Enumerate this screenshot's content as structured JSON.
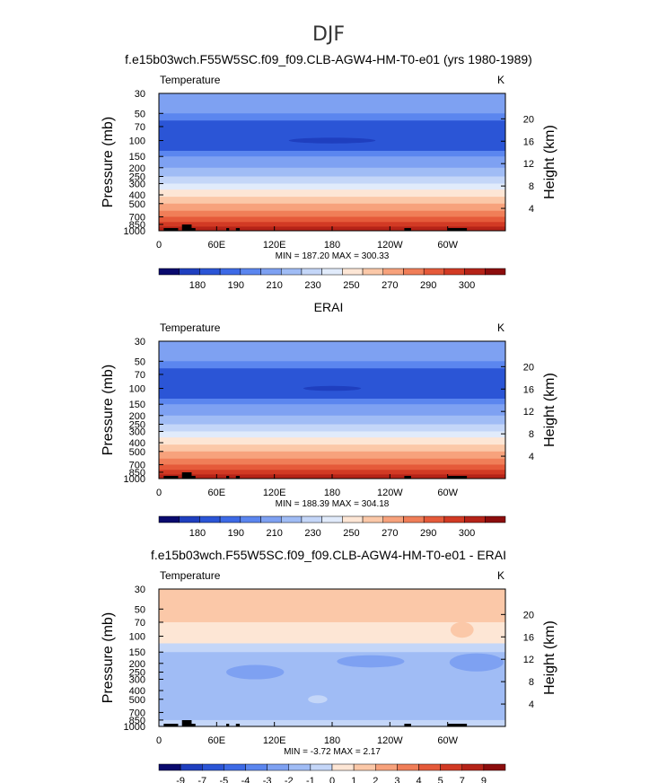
{
  "figure": {
    "title": "DJF"
  },
  "chart_data": [
    {
      "type": "heatmap",
      "name": "model",
      "title": "f.e15b03wch.F55W5SC.f09_f09.CLB-AGW4-HM-T0-e01 (yrs 1980-1989)",
      "variable": "Temperature",
      "units": "K",
      "ylabel": "Pressure  (mb)",
      "ylabel_right": "Height  (km)",
      "x_ticks": [
        "0",
        "60E",
        "120E",
        "180",
        "120W",
        "60W"
      ],
      "y_ticks": [
        "30",
        "50",
        "70",
        "100",
        "150",
        "200",
        "250",
        "300",
        "400",
        "500",
        "700",
        "850",
        "1000"
      ],
      "height_ticks": [
        "20",
        "16",
        "12",
        "8",
        "4"
      ],
      "stats": "MIN = 187.20  MAX = 300.33",
      "colorbar_labels": [
        "180",
        "190",
        "210",
        "230",
        "250",
        "270",
        "290",
        "300"
      ],
      "colorbar_colors": [
        "#0a0a6e",
        "#1f3fbf",
        "#2b55d6",
        "#3d6ae6",
        "#5b86ef",
        "#7ea1f2",
        "#a0bcf5",
        "#c4d6f8",
        "#e1ebfb",
        "#fde6d5",
        "#fbc8a8",
        "#f7a27c",
        "#f07e58",
        "#e55a3a",
        "#d23a24",
        "#b52318",
        "#8c0d0d"
      ],
      "bands": [
        {
          "p": [
            30,
            50
          ],
          "color": "#7ea1f2"
        },
        {
          "p": [
            50,
            60
          ],
          "color": "#5b86ef"
        },
        {
          "p": [
            60,
            130
          ],
          "color": "#2b55d6"
        },
        {
          "p": [
            130,
            150
          ],
          "color": "#5b86ef"
        },
        {
          "p": [
            150,
            200
          ],
          "color": "#7ea1f2"
        },
        {
          "p": [
            200,
            250
          ],
          "color": "#a0bcf5"
        },
        {
          "p": [
            250,
            300
          ],
          "color": "#c4d6f8"
        },
        {
          "p": [
            300,
            350
          ],
          "color": "#e1ebfb"
        },
        {
          "p": [
            350,
            420
          ],
          "color": "#fde6d5"
        },
        {
          "p": [
            420,
            500
          ],
          "color": "#fbc8a8"
        },
        {
          "p": [
            500,
            600
          ],
          "color": "#f7a27c"
        },
        {
          "p": [
            600,
            700
          ],
          "color": "#f07e58"
        },
        {
          "p": [
            700,
            800
          ],
          "color": "#e55a3a"
        },
        {
          "p": [
            800,
            900
          ],
          "color": "#d23a24"
        },
        {
          "p": [
            900,
            1000
          ],
          "color": "#b52318"
        }
      ],
      "blobs": [
        {
          "lon": 180,
          "p": 100,
          "dlon": 45,
          "dp": 5,
          "color": "#1f3fbf"
        }
      ]
    },
    {
      "type": "heatmap",
      "name": "obs",
      "title": "ERAI",
      "variable": "Temperature",
      "units": "K",
      "ylabel": "Pressure  (mb)",
      "ylabel_right": "Height  (km)",
      "x_ticks": [
        "0",
        "60E",
        "120E",
        "180",
        "120W",
        "60W"
      ],
      "y_ticks": [
        "30",
        "50",
        "70",
        "100",
        "150",
        "200",
        "250",
        "300",
        "400",
        "500",
        "700",
        "850",
        "1000"
      ],
      "height_ticks": [
        "20",
        "16",
        "12",
        "8",
        "4"
      ],
      "stats": "MIN = 188.39  MAX = 304.18",
      "colorbar_labels": [
        "180",
        "190",
        "210",
        "230",
        "250",
        "270",
        "290",
        "300"
      ],
      "colorbar_colors": [
        "#0a0a6e",
        "#1f3fbf",
        "#2b55d6",
        "#3d6ae6",
        "#5b86ef",
        "#7ea1f2",
        "#a0bcf5",
        "#c4d6f8",
        "#e1ebfb",
        "#fde6d5",
        "#fbc8a8",
        "#f7a27c",
        "#f07e58",
        "#e55a3a",
        "#d23a24",
        "#b52318",
        "#8c0d0d"
      ],
      "bands": [
        {
          "p": [
            30,
            50
          ],
          "color": "#7ea1f2"
        },
        {
          "p": [
            50,
            60
          ],
          "color": "#5b86ef"
        },
        {
          "p": [
            60,
            130
          ],
          "color": "#2b55d6"
        },
        {
          "p": [
            130,
            150
          ],
          "color": "#5b86ef"
        },
        {
          "p": [
            150,
            200
          ],
          "color": "#7ea1f2"
        },
        {
          "p": [
            200,
            250
          ],
          "color": "#a0bcf5"
        },
        {
          "p": [
            250,
            300
          ],
          "color": "#c4d6f8"
        },
        {
          "p": [
            300,
            350
          ],
          "color": "#e1ebfb"
        },
        {
          "p": [
            350,
            420
          ],
          "color": "#fde6d5"
        },
        {
          "p": [
            420,
            500
          ],
          "color": "#fbc8a8"
        },
        {
          "p": [
            500,
            600
          ],
          "color": "#f7a27c"
        },
        {
          "p": [
            600,
            700
          ],
          "color": "#f07e58"
        },
        {
          "p": [
            700,
            800
          ],
          "color": "#e55a3a"
        },
        {
          "p": [
            800,
            900
          ],
          "color": "#d23a24"
        },
        {
          "p": [
            900,
            1000
          ],
          "color": "#b52318"
        }
      ],
      "blobs": [
        {
          "lon": 180,
          "p": 100,
          "dlon": 30,
          "dp": 4,
          "color": "#1f3fbf"
        }
      ]
    },
    {
      "type": "heatmap",
      "name": "diff",
      "title": "f.e15b03wch.F55W5SC.f09_f09.CLB-AGW4-HM-T0-e01 - ERAI",
      "variable": "Temperature",
      "units": "K",
      "ylabel": "Pressure  (mb)",
      "ylabel_right": "Height  (km)",
      "x_ticks": [
        "0",
        "60E",
        "120E",
        "180",
        "120W",
        "60W"
      ],
      "y_ticks": [
        "30",
        "50",
        "70",
        "100",
        "150",
        "200",
        "250",
        "300",
        "400",
        "500",
        "700",
        "850",
        "1000"
      ],
      "height_ticks": [
        "20",
        "16",
        "12",
        "8",
        "4"
      ],
      "stats": "MIN =   -3.72  MAX =    2.17",
      "colorbar_labels": [
        "-9",
        "-7",
        "-5",
        "-4",
        "-3",
        "-2",
        "-1",
        "0",
        "1",
        "2",
        "3",
        "4",
        "5",
        "7",
        "9"
      ],
      "colorbar_colors": [
        "#0a0a6e",
        "#1f3fbf",
        "#2b55d6",
        "#3d6ae6",
        "#5b86ef",
        "#7ea1f2",
        "#a0bcf5",
        "#c4d6f8",
        "#fde6d5",
        "#fbc8a8",
        "#f7a27c",
        "#f07e58",
        "#e55a3a",
        "#d23a24",
        "#b52318",
        "#8c0d0d"
      ],
      "bands": [
        {
          "p": [
            30,
            70
          ],
          "color": "#fbc8a8"
        },
        {
          "p": [
            70,
            120
          ],
          "color": "#fde6d5"
        },
        {
          "p": [
            120,
            150
          ],
          "color": "#c4d6f8"
        },
        {
          "p": [
            150,
            850
          ],
          "color": "#a0bcf5"
        },
        {
          "p": [
            850,
            1000
          ],
          "color": "#c4d6f8"
        }
      ],
      "blobs": [
        {
          "lon": 220,
          "p": 190,
          "dlon": 35,
          "dp": 25,
          "color": "#7ea1f2"
        },
        {
          "lon": 330,
          "p": 195,
          "dlon": 28,
          "dp": 40,
          "color": "#7ea1f2"
        },
        {
          "lon": 100,
          "p": 250,
          "dlon": 30,
          "dp": 40,
          "color": "#7ea1f2"
        },
        {
          "lon": 315,
          "p": 85,
          "dlon": 12,
          "dp": 15,
          "color": "#fbc8a8"
        },
        {
          "lon": 165,
          "p": 500,
          "dlon": 10,
          "dp": 40,
          "color": "#c4d6f8"
        }
      ]
    }
  ]
}
